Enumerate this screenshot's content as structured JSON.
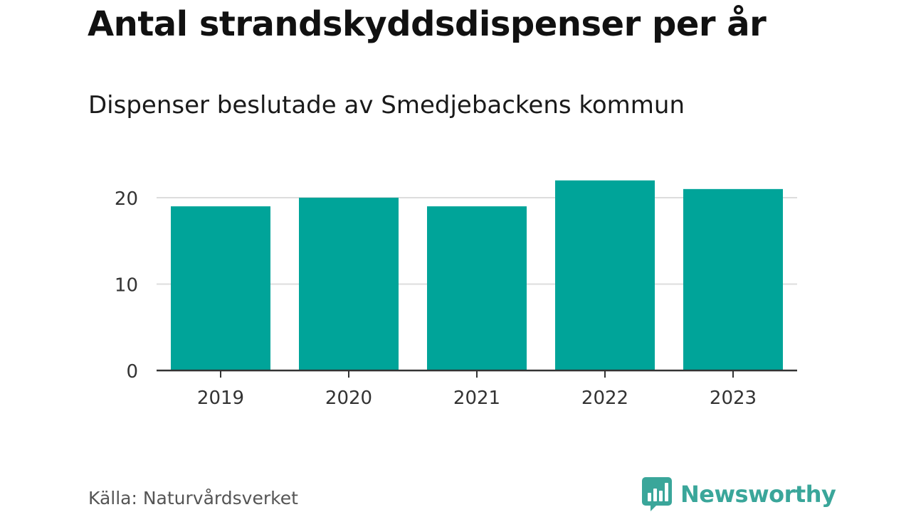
{
  "header": {
    "title": "Antal strandskyddsdispenser per år",
    "subtitle": "Dispenser beslutade av Smedjebackens kommun"
  },
  "footer": {
    "source": "Källa: Naturvårdsverket",
    "brand": "Newsworthy"
  },
  "colors": {
    "bar": "#00a499",
    "grid": "#dddddd",
    "axis": "#333333",
    "brand": "#3aa69a"
  },
  "chart_data": {
    "type": "bar",
    "title": "Antal strandskyddsdispenser per år",
    "subtitle": "Dispenser beslutade av Smedjebackens kommun",
    "categories": [
      "2019",
      "2020",
      "2021",
      "2022",
      "2023"
    ],
    "values": [
      19,
      20,
      19,
      22,
      21
    ],
    "xlabel": "",
    "ylabel": "",
    "ylim": [
      0,
      22
    ],
    "yticks": [
      0,
      10,
      20
    ],
    "grid": true,
    "legend": "none"
  }
}
